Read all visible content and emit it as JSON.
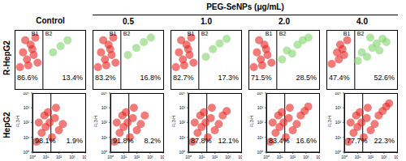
{
  "title": "PEG-SeNPs (μg/mL)",
  "columns": [
    "Control",
    "0.5",
    "1.0",
    "2.0",
    "4.0"
  ],
  "rows": [
    "R-HepG2",
    "HepG2"
  ],
  "chart_data": [
    {
      "type": "scatter",
      "log": true,
      "xlim": [
        1,
        10000
      ],
      "ylim": [
        1,
        10000
      ],
      "tick_labels": false,
      "gate": 40,
      "quadrants": [
        "B1",
        "B2"
      ],
      "annotations": [
        "86.6%",
        "13.4%"
      ],
      "series": [
        {
          "color": "#e8231f",
          "x": [
            2,
            3,
            5,
            8,
            12,
            20,
            4,
            10,
            6,
            15
          ],
          "y": [
            30,
            300,
            100,
            1000,
            200,
            60,
            2000,
            500,
            40,
            3000
          ]
        },
        {
          "color": "#7ed36a",
          "x": [
            150,
            400,
            1000
          ],
          "y": [
            300,
            800,
            2000
          ]
        }
      ]
    },
    {
      "type": "scatter",
      "log": true,
      "xlim": [
        1,
        10000
      ],
      "ylim": [
        1,
        10000
      ],
      "tick_labels": false,
      "gate": 40,
      "quadrants": [
        "B1",
        "B2"
      ],
      "annotations": [
        "83.2%",
        "16.8%"
      ],
      "series": [
        {
          "color": "#e8231f",
          "x": [
            2,
            3,
            5,
            8,
            12,
            20,
            4,
            10,
            6,
            15
          ],
          "y": [
            30,
            300,
            100,
            1000,
            200,
            60,
            2000,
            500,
            40,
            3000
          ]
        },
        {
          "color": "#7ed36a",
          "x": [
            100,
            300,
            800,
            2000
          ],
          "y": [
            200,
            600,
            1500,
            3000
          ]
        }
      ]
    },
    {
      "type": "scatter",
      "log": true,
      "xlim": [
        1,
        10000
      ],
      "ylim": [
        1,
        10000
      ],
      "tick_labels": false,
      "gate": 40,
      "quadrants": [
        "B1",
        "B2"
      ],
      "annotations": [
        "82.7%",
        "17.3%"
      ],
      "series": [
        {
          "color": "#e8231f",
          "x": [
            2,
            3,
            5,
            8,
            12,
            20,
            4,
            10,
            6,
            15
          ],
          "y": [
            30,
            300,
            100,
            1000,
            200,
            60,
            2000,
            500,
            40,
            3000
          ]
        },
        {
          "color": "#7ed36a",
          "x": [
            100,
            250,
            600,
            1500
          ],
          "y": [
            150,
            500,
            1200,
            2500
          ]
        }
      ]
    },
    {
      "type": "scatter",
      "log": true,
      "xlim": [
        1,
        10000
      ],
      "ylim": [
        1,
        10000
      ],
      "tick_labels": false,
      "gate": 40,
      "quadrants": [
        "B1",
        "B2"
      ],
      "annotations": [
        "71.5%",
        "28.5%"
      ],
      "series": [
        {
          "color": "#e8231f",
          "x": [
            2,
            3,
            5,
            8,
            12,
            20,
            4,
            10,
            6
          ],
          "y": [
            30,
            300,
            100,
            1000,
            200,
            60,
            2000,
            500,
            40
          ]
        },
        {
          "color": "#7ed36a",
          "x": [
            80,
            150,
            300,
            600,
            1200,
            2500
          ],
          "y": [
            100,
            400,
            250,
            1000,
            2000,
            3000
          ]
        }
      ]
    },
    {
      "type": "scatter",
      "log": true,
      "xlim": [
        1,
        10000
      ],
      "ylim": [
        1,
        10000
      ],
      "tick_labels": false,
      "gate": 40,
      "quadrants": [
        "B1",
        "B2"
      ],
      "annotations": [
        "47.4%",
        "52.6%"
      ],
      "series": [
        {
          "color": "#e8231f",
          "x": [
            2,
            4,
            6,
            10,
            15,
            5,
            8
          ],
          "y": [
            50,
            300,
            1000,
            200,
            2000,
            100,
            500
          ]
        },
        {
          "color": "#7ed36a",
          "x": [
            60,
            100,
            200,
            400,
            700,
            1000,
            1500,
            2500,
            300
          ],
          "y": [
            80,
            300,
            150,
            600,
            1200,
            400,
            2500,
            1500,
            3000
          ]
        }
      ]
    },
    {
      "type": "scatter",
      "log": true,
      "xlim": [
        1,
        10000
      ],
      "ylim": [
        1,
        10000
      ],
      "xticks": [
        {
          "value": 1,
          "label": "10⁰"
        },
        {
          "value": 10,
          "label": "10¹"
        },
        {
          "value": 100,
          "label": "10²"
        },
        {
          "value": 1000,
          "label": "10³"
        },
        {
          "value": 10000,
          "label": "10⁴"
        }
      ],
      "yticks": [
        {
          "value": 1,
          "label": "10⁰"
        },
        {
          "value": 10,
          "label": "10¹"
        },
        {
          "value": 100,
          "label": "10²"
        },
        {
          "value": 1000,
          "label": "10³"
        },
        {
          "value": 10000,
          "label": "10⁴"
        }
      ],
      "y_label": "FL3-H",
      "gate": 25,
      "annotations": [
        "98.1%",
        "1.9%"
      ],
      "series": [
        {
          "color": "#e8231f",
          "x": [
            2,
            5,
            10,
            20,
            50,
            100,
            8,
            30,
            200,
            3,
            15,
            60
          ],
          "y": [
            5,
            20,
            50,
            100,
            200,
            30,
            300,
            10,
            80,
            100,
            500,
            1000
          ]
        }
      ]
    },
    {
      "type": "scatter",
      "log": true,
      "xlim": [
        1,
        10000
      ],
      "ylim": [
        1,
        10000
      ],
      "xticks": [
        {
          "value": 1,
          "label": "10⁰"
        },
        {
          "value": 10,
          "label": "10¹"
        },
        {
          "value": 100,
          "label": "10²"
        },
        {
          "value": 1000,
          "label": "10³"
        },
        {
          "value": 10000,
          "label": "10⁴"
        }
      ],
      "yticks": [
        {
          "value": 1,
          "label": "10⁰"
        },
        {
          "value": 10,
          "label": "10¹"
        },
        {
          "value": 100,
          "label": "10²"
        },
        {
          "value": 1000,
          "label": "10³"
        },
        {
          "value": 10000,
          "label": "10⁴"
        }
      ],
      "y_label": "FL3-H",
      "gate": 25,
      "annotations": [
        "91.8%",
        "8.2%"
      ],
      "series": [
        {
          "color": "#e8231f",
          "x": [
            2,
            5,
            10,
            20,
            50,
            100,
            8,
            30,
            200,
            3,
            15,
            60,
            400
          ],
          "y": [
            5,
            20,
            50,
            100,
            200,
            30,
            300,
            10,
            80,
            100,
            500,
            1000,
            300
          ]
        }
      ]
    },
    {
      "type": "scatter",
      "log": true,
      "xlim": [
        1,
        10000
      ],
      "ylim": [
        1,
        10000
      ],
      "xticks": [
        {
          "value": 1,
          "label": "10⁰"
        },
        {
          "value": 10,
          "label": "10¹"
        },
        {
          "value": 100,
          "label": "10²"
        },
        {
          "value": 1000,
          "label": "10³"
        },
        {
          "value": 10000,
          "label": "10⁴"
        }
      ],
      "yticks": [
        {
          "value": 1,
          "label": "10⁰"
        },
        {
          "value": 10,
          "label": "10¹"
        },
        {
          "value": 100,
          "label": "10²"
        },
        {
          "value": 1000,
          "label": "10³"
        },
        {
          "value": 10000,
          "label": "10⁴"
        }
      ],
      "y_label": "FL3-H",
      "gate": 25,
      "annotations": [
        "87.8%",
        "12.1%"
      ],
      "series": [
        {
          "color": "#e8231f",
          "x": [
            2,
            5,
            10,
            20,
            50,
            100,
            8,
            30,
            200,
            3,
            15,
            60,
            400,
            800
          ],
          "y": [
            5,
            20,
            50,
            100,
            200,
            30,
            300,
            10,
            80,
            100,
            500,
            1000,
            300,
            600
          ]
        }
      ]
    },
    {
      "type": "scatter",
      "log": true,
      "xlim": [
        1,
        10000
      ],
      "ylim": [
        1,
        10000
      ],
      "xticks": [
        {
          "value": 1,
          "label": "10⁰"
        },
        {
          "value": 10,
          "label": "10¹"
        },
        {
          "value": 100,
          "label": "10²"
        },
        {
          "value": 1000,
          "label": "10³"
        },
        {
          "value": 10000,
          "label": "10⁴"
        }
      ],
      "yticks": [
        {
          "value": 1,
          "label": "10⁰"
        },
        {
          "value": 10,
          "label": "10¹"
        },
        {
          "value": 100,
          "label": "10²"
        },
        {
          "value": 1000,
          "label": "10³"
        },
        {
          "value": 10000,
          "label": "10⁴"
        }
      ],
      "y_label": "FL3-H",
      "gate": 25,
      "annotations": [
        "83.4%",
        "16.6%"
      ],
      "series": [
        {
          "color": "#e8231f",
          "x": [
            2,
            5,
            10,
            20,
            50,
            100,
            8,
            30,
            200,
            3,
            15,
            60,
            400,
            800,
            1500
          ],
          "y": [
            5,
            20,
            50,
            100,
            200,
            30,
            300,
            10,
            80,
            100,
            500,
            1000,
            300,
            600,
            1200
          ]
        }
      ]
    },
    {
      "type": "scatter",
      "log": true,
      "xlim": [
        1,
        10000
      ],
      "ylim": [
        1,
        10000
      ],
      "xticks": [
        {
          "value": 1,
          "label": "10⁰"
        },
        {
          "value": 10,
          "label": "10¹"
        },
        {
          "value": 100,
          "label": "10²"
        },
        {
          "value": 1000,
          "label": "10³"
        },
        {
          "value": 10000,
          "label": "10⁴"
        }
      ],
      "yticks": [
        {
          "value": 1,
          "label": "10⁰"
        },
        {
          "value": 10,
          "label": "10¹"
        },
        {
          "value": 100,
          "label": "10²"
        },
        {
          "value": 1000,
          "label": "10³"
        },
        {
          "value": 10000,
          "label": "10⁴"
        }
      ],
      "y_label": "FL3-H",
      "gate": 25,
      "annotations": [
        "77.7%",
        "22.3%"
      ],
      "series": [
        {
          "color": "#e8231f",
          "x": [
            2,
            5,
            10,
            20,
            50,
            100,
            8,
            30,
            200,
            3,
            15,
            60,
            400,
            800,
            1500,
            2500
          ],
          "y": [
            5,
            20,
            50,
            100,
            200,
            30,
            300,
            10,
            80,
            100,
            500,
            1000,
            300,
            600,
            1200,
            2000
          ]
        }
      ]
    }
  ]
}
